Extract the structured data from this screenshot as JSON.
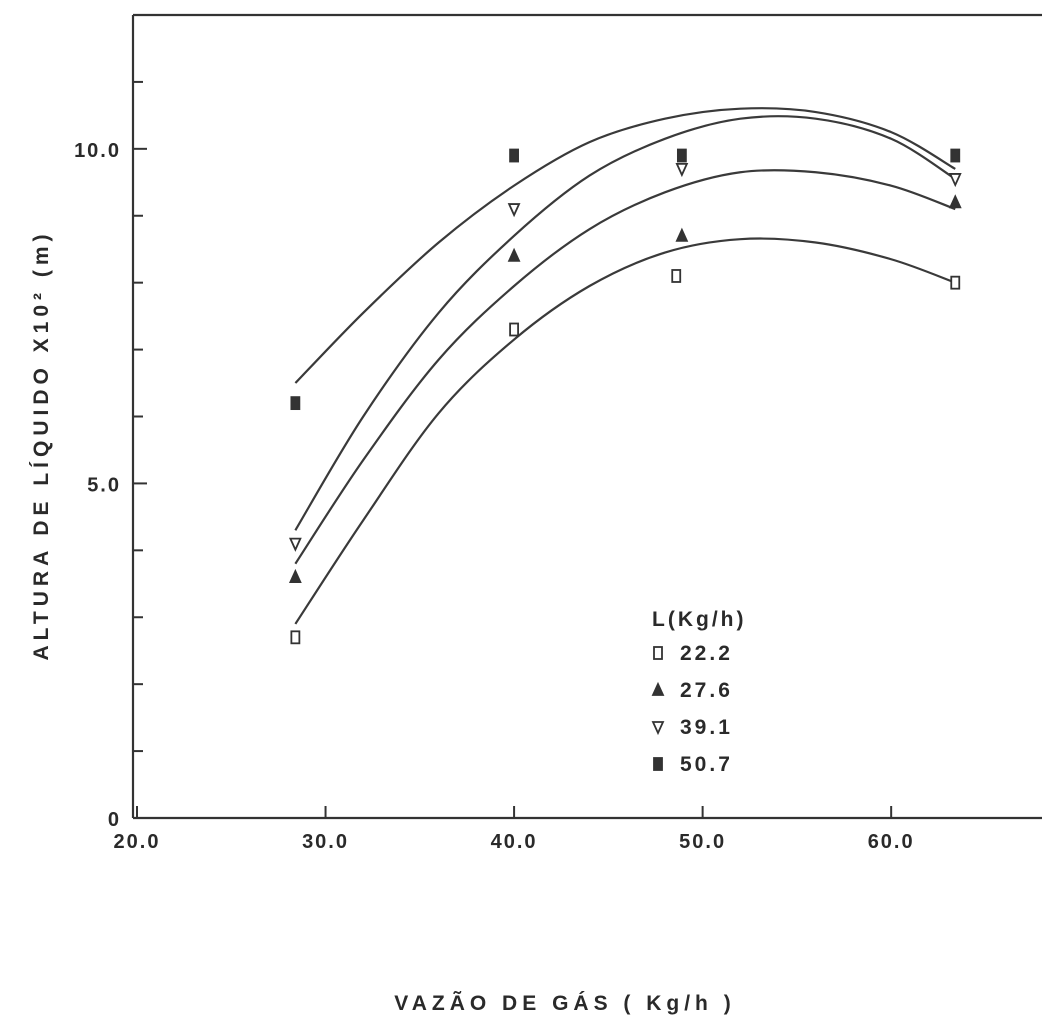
{
  "chart_data": {
    "type": "scatter",
    "xlabel": "VAZÃO DE GÁS ( Kg/h )",
    "ylabel": "ALTURA DE LÍQUIDO X10² (m)",
    "xlim": [
      20.0,
      68.0
    ],
    "ylim": [
      0,
      12.0
    ],
    "x_ticks": [
      20.0,
      30.0,
      40.0,
      50.0,
      60.0
    ],
    "x_tick_labels": [
      "20.0",
      "30.0",
      "40.0",
      "50.0",
      "60.0"
    ],
    "y_ticks": [
      0,
      5.0,
      10.0
    ],
    "y_tick_labels": [
      "0",
      "5.0",
      "10.0"
    ],
    "y_minor_ticks": [
      1,
      2,
      3,
      4,
      6,
      7,
      8,
      9,
      11
    ],
    "grid": false,
    "legend": {
      "title": "L(Kg/h)",
      "placement": "lower-right"
    },
    "series": [
      {
        "name": "22.2",
        "marker": "square-open",
        "points": [
          [
            28.4,
            2.7
          ],
          [
            40.0,
            7.3
          ],
          [
            48.6,
            8.1
          ],
          [
            63.4,
            8.0
          ]
        ],
        "curve": [
          [
            28.4,
            2.9
          ],
          [
            32,
            4.45
          ],
          [
            36,
            6.05
          ],
          [
            40,
            7.15
          ],
          [
            44,
            7.95
          ],
          [
            48,
            8.45
          ],
          [
            52,
            8.65
          ],
          [
            56,
            8.6
          ],
          [
            60,
            8.35
          ],
          [
            63.4,
            8.0
          ]
        ]
      },
      {
        "name": "27.6",
        "marker": "triangle-up-filled",
        "points": [
          [
            28.4,
            3.6
          ],
          [
            40.0,
            8.4
          ],
          [
            48.9,
            8.7
          ],
          [
            63.4,
            9.2
          ]
        ],
        "curve": [
          [
            28.4,
            3.8
          ],
          [
            32,
            5.35
          ],
          [
            36,
            6.85
          ],
          [
            40,
            7.95
          ],
          [
            44,
            8.8
          ],
          [
            48,
            9.35
          ],
          [
            52,
            9.65
          ],
          [
            56,
            9.65
          ],
          [
            60,
            9.45
          ],
          [
            63.4,
            9.1
          ]
        ]
      },
      {
        "name": "39.1",
        "marker": "triangle-down-open",
        "points": [
          [
            28.4,
            4.1
          ],
          [
            40.0,
            9.1
          ],
          [
            48.9,
            9.7
          ],
          [
            63.4,
            9.55
          ]
        ],
        "curve": [
          [
            28.4,
            4.3
          ],
          [
            32,
            6.0
          ],
          [
            36,
            7.55
          ],
          [
            40,
            8.7
          ],
          [
            44,
            9.6
          ],
          [
            48,
            10.15
          ],
          [
            52,
            10.45
          ],
          [
            56,
            10.45
          ],
          [
            60,
            10.15
          ],
          [
            63.4,
            9.55
          ]
        ]
      },
      {
        "name": "50.7",
        "marker": "square-filled",
        "points": [
          [
            28.4,
            6.2
          ],
          [
            40.0,
            9.9
          ],
          [
            48.9,
            9.9
          ],
          [
            63.4,
            9.9
          ]
        ],
        "curve": [
          [
            28.4,
            6.5
          ],
          [
            32,
            7.55
          ],
          [
            36,
            8.6
          ],
          [
            40,
            9.45
          ],
          [
            44,
            10.1
          ],
          [
            48,
            10.45
          ],
          [
            52,
            10.6
          ],
          [
            56,
            10.55
          ],
          [
            60,
            10.25
          ],
          [
            63.4,
            9.7
          ]
        ]
      }
    ]
  }
}
